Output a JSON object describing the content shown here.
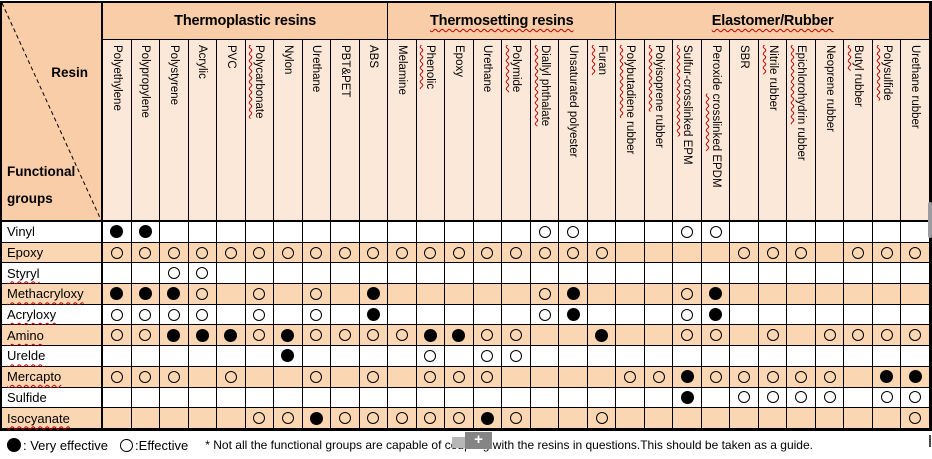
{
  "table": {
    "corner": {
      "top_label": "Resin",
      "bottom_label": "Functional groups"
    },
    "groups": [
      {
        "label": "Thermoplastic resins",
        "wavy": false,
        "span": 10
      },
      {
        "label": "Thermosetting resins",
        "wavy": true,
        "span": 8
      },
      {
        "label": "Elastomer/Rubber",
        "wavy": true,
        "span": 11
      }
    ],
    "columns": [
      {
        "segs": [
          [
            "Polyethylene",
            0
          ]
        ]
      },
      {
        "segs": [
          [
            "Polypropylene",
            0
          ]
        ]
      },
      {
        "segs": [
          [
            "Polystyrene",
            0
          ]
        ]
      },
      {
        "segs": [
          [
            "Acrylic",
            0
          ]
        ]
      },
      {
        "segs": [
          [
            "PVC",
            0
          ]
        ]
      },
      {
        "segs": [
          [
            "Polycarbonate",
            1
          ]
        ]
      },
      {
        "segs": [
          [
            "Nylon",
            0
          ]
        ]
      },
      {
        "segs": [
          [
            "Urethane",
            0
          ]
        ]
      },
      {
        "segs": [
          [
            "PBT&PET",
            0
          ]
        ]
      },
      {
        "segs": [
          [
            "ABS",
            0
          ]
        ]
      },
      {
        "segs": [
          [
            "Melamine",
            0
          ]
        ]
      },
      {
        "segs": [
          [
            "Phenolic",
            1
          ]
        ]
      },
      {
        "segs": [
          [
            "Epoxy",
            0
          ]
        ]
      },
      {
        "segs": [
          [
            "Urethane",
            0
          ]
        ]
      },
      {
        "segs": [
          [
            "Polymide",
            1
          ]
        ]
      },
      {
        "segs": [
          [
            "Diallyl phthalate",
            1
          ]
        ]
      },
      {
        "segs": [
          [
            "Unsaturated polyester",
            0
          ]
        ]
      },
      {
        "segs": [
          [
            "Furan",
            1
          ]
        ]
      },
      {
        "segs": [
          [
            "Polybutadiene",
            1
          ],
          [
            " rubber",
            0
          ]
        ]
      },
      {
        "segs": [
          [
            "Polyisoprene",
            1
          ],
          [
            " rubber",
            0
          ]
        ]
      },
      {
        "segs": [
          [
            "Sulfur-crosslinked",
            1
          ],
          [
            " EPM",
            0
          ]
        ]
      },
      {
        "segs": [
          [
            "Peroxide ",
            0
          ],
          [
            "crosslinked",
            1
          ],
          [
            " EPDM",
            0
          ]
        ]
      },
      {
        "segs": [
          [
            "SBR",
            0
          ]
        ]
      },
      {
        "segs": [
          [
            "Nitrile",
            1
          ],
          [
            " rubber",
            0
          ]
        ]
      },
      {
        "segs": [
          [
            "Epichlorohydrin",
            1
          ],
          [
            " rubber",
            0
          ]
        ]
      },
      {
        "segs": [
          [
            "Neoprene rubber",
            0
          ]
        ]
      },
      {
        "segs": [
          [
            "Butyl",
            1
          ],
          [
            " rubber",
            0
          ]
        ]
      },
      {
        "segs": [
          [
            "Polysulfide",
            1
          ]
        ]
      },
      {
        "segs": [
          [
            "Urethane rubber",
            0
          ]
        ]
      }
    ],
    "symbols": {
      "x": "very effective",
      "o": "effective",
      ".": "none"
    },
    "rows": [
      {
        "label": "Vinyl",
        "wavy": false,
        "cells": "xx.............oo...oo......."
      },
      {
        "label": "Epoxy",
        "wavy": false,
        "cells": "oooooooooooooooooo....ooo.ooo"
      },
      {
        "label": "Styryl",
        "wavy": true,
        "cells": "..oo........................."
      },
      {
        "label": "Methacryloxy",
        "wavy": true,
        "cells": "xxxo.o.o.x.....ox...ox......."
      },
      {
        "label": "Acryloxy",
        "wavy": true,
        "cells": "oooo.o.o.x.....ox...ox......."
      },
      {
        "label": "Amino",
        "wavy": true,
        "cells": "ooxxxoxooooxxoo..x..oo.o.oooo"
      },
      {
        "label": "Urelde",
        "wavy": true,
        "cells": "......x....o.oo.............."
      },
      {
        "label": "Mercapto",
        "wavy": true,
        "cells": "ooo.o..o.o.ooo....ooxooooo.xx"
      },
      {
        "label": "Sulfide",
        "wavy": false,
        "cells": "....................x.oooo.oo"
      },
      {
        "label": "Isocyanate",
        "wavy": true,
        "cells": ".....ooxoooooxo..o..........o"
      }
    ]
  },
  "legend": {
    "very_symbol": "filled-circle",
    "very_label": ": Very effective",
    "effective_symbol": "open-circle",
    "effective_label": ":Effective",
    "note": "* Not all the functional groups are capable of coupling with the resins in questions.This should be taken as a guide."
  },
  "overlay": {
    "zoom_badge": "+"
  },
  "colors": {
    "group_header_bg": "#F8CDA7",
    "column_header_bg": "#FCE8D8",
    "row_alt_bg": "#FAD6B2",
    "squiggle": "#C00000",
    "border": "#000000",
    "scrollbar": "#9B9BA0",
    "badge_gray": "#858585"
  }
}
